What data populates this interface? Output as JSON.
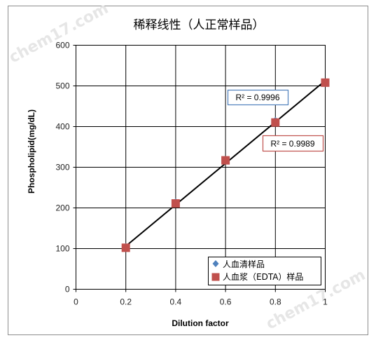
{
  "watermarks": [
    "chem17.com",
    "chem17.com"
  ],
  "chart_data": {
    "type": "scatter",
    "title": "稀释线性（人正常样品）",
    "xlabel": "Dilution factor",
    "ylabel": "Phospholipid(mg/dL)",
    "xlim": [
      0,
      1
    ],
    "ylim": [
      0,
      600
    ],
    "xticks": [
      0,
      0.2,
      0.4,
      0.6,
      0.8,
      1
    ],
    "xtick_labels": [
      "0",
      "0.2",
      "0.4",
      "0.6",
      "0.8",
      "1"
    ],
    "yticks": [
      0,
      100,
      200,
      300,
      400,
      500,
      600
    ],
    "ytick_labels": [
      "0",
      "100",
      "200",
      "300",
      "400",
      "500",
      "600"
    ],
    "grid": true,
    "legend_position": "bottom-right",
    "series": [
      {
        "name": "人血清样品",
        "marker": "diamond",
        "color": "#4f81bd",
        "x": [
          0.2,
          0.4,
          0.6,
          0.8,
          1.0
        ],
        "y": [
          105,
          215,
          318,
          415,
          510
        ]
      },
      {
        "name": "人血浆（EDTA）样品",
        "marker": "square",
        "color": "#c0504d",
        "x": [
          0.2,
          0.4,
          0.6,
          0.8,
          1.0
        ],
        "y": [
          102,
          211,
          317,
          410,
          508
        ]
      }
    ],
    "trendline": {
      "color": "#000000",
      "x": [
        0.2,
        1.0
      ],
      "y": [
        106,
        513
      ]
    },
    "annotations": [
      {
        "text": "R² = 0.9996",
        "border_color": "#4f81bd"
      },
      {
        "text": "R² = 0.9989",
        "border_color": "#c0504d"
      }
    ]
  }
}
